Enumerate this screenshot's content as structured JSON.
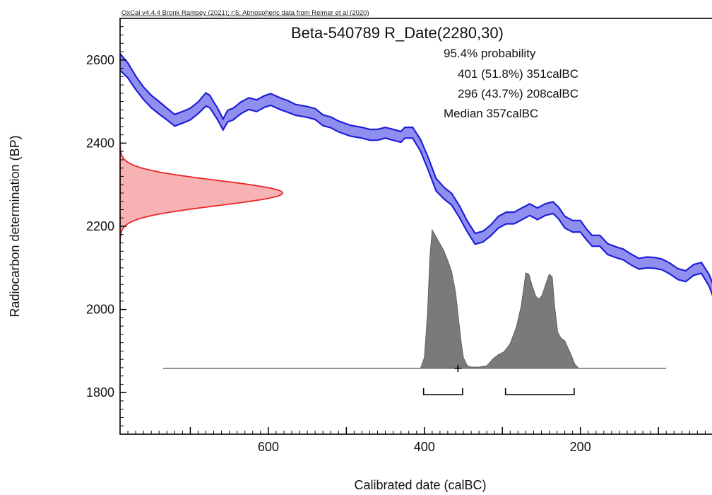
{
  "chart_data": {
    "type": "area",
    "header": "OxCal v4.4.4 Bronk Ramsey (2021); r:5; Atmospheric data from Reimer et al (2020)",
    "title": "Beta-540789 R_Date(2280,30)",
    "probability_label": "95.4% probability",
    "ranges": [
      {
        "text": "401 (51.8%) 351calBC",
        "from": 401,
        "to": 351,
        "percent": 51.8
      },
      {
        "text": "296 (43.7%) 208calBC",
        "from": 296,
        "to": 208,
        "percent": 43.7
      }
    ],
    "median_text": "Median 357calBC",
    "median": 357,
    "xlabel": "Calibrated date (calBC)",
    "ylabel": "Radiocarbon determination (BP)",
    "xlim": [
      790,
      25
    ],
    "ylim": [
      1700,
      2700
    ],
    "x_ticks": [
      600,
      400,
      200
    ],
    "y_ticks": [
      1800,
      2000,
      2200,
      2400,
      2600
    ],
    "radiocarbon_date": {
      "mean": 2280,
      "sd": 30
    },
    "calibration_curve": {
      "name": "Atmospheric calibration curve",
      "color": "#1f1fd8",
      "fill": "#8f8ff0",
      "points": [
        [
          790,
          2595,
          20
        ],
        [
          780,
          2575,
          18
        ],
        [
          770,
          2545,
          16
        ],
        [
          760,
          2520,
          15
        ],
        [
          750,
          2500,
          15
        ],
        [
          740,
          2485,
          15
        ],
        [
          730,
          2470,
          14
        ],
        [
          720,
          2455,
          14
        ],
        [
          710,
          2462,
          14
        ],
        [
          700,
          2470,
          14
        ],
        [
          690,
          2485,
          14
        ],
        [
          680,
          2505,
          16
        ],
        [
          675,
          2500,
          15
        ],
        [
          670,
          2485,
          14
        ],
        [
          665,
          2470,
          14
        ],
        [
          658,
          2445,
          13
        ],
        [
          652,
          2465,
          14
        ],
        [
          645,
          2470,
          14
        ],
        [
          635,
          2485,
          14
        ],
        [
          625,
          2495,
          14
        ],
        [
          615,
          2490,
          14
        ],
        [
          605,
          2500,
          14
        ],
        [
          597,
          2505,
          14
        ],
        [
          585,
          2495,
          14
        ],
        [
          575,
          2488,
          14
        ],
        [
          565,
          2480,
          13
        ],
        [
          550,
          2475,
          13
        ],
        [
          540,
          2470,
          13
        ],
        [
          530,
          2455,
          13
        ],
        [
          520,
          2450,
          13
        ],
        [
          510,
          2440,
          13
        ],
        [
          495,
          2430,
          13
        ],
        [
          480,
          2425,
          13
        ],
        [
          470,
          2420,
          13
        ],
        [
          460,
          2420,
          13
        ],
        [
          450,
          2425,
          13
        ],
        [
          440,
          2420,
          13
        ],
        [
          430,
          2415,
          13
        ],
        [
          425,
          2425,
          13
        ],
        [
          415,
          2425,
          13
        ],
        [
          405,
          2395,
          14
        ],
        [
          395,
          2350,
          15
        ],
        [
          385,
          2300,
          15
        ],
        [
          375,
          2280,
          14
        ],
        [
          365,
          2265,
          14
        ],
        [
          355,
          2235,
          14
        ],
        [
          345,
          2200,
          13
        ],
        [
          335,
          2170,
          13
        ],
        [
          325,
          2175,
          13
        ],
        [
          315,
          2190,
          13
        ],
        [
          305,
          2210,
          14
        ],
        [
          295,
          2220,
          14
        ],
        [
          285,
          2220,
          14
        ],
        [
          275,
          2230,
          14
        ],
        [
          265,
          2240,
          14
        ],
        [
          255,
          2230,
          14
        ],
        [
          245,
          2240,
          14
        ],
        [
          235,
          2245,
          14
        ],
        [
          228,
          2232,
          14
        ],
        [
          220,
          2210,
          14
        ],
        [
          210,
          2200,
          14
        ],
        [
          200,
          2200,
          14
        ],
        [
          192,
          2180,
          13
        ],
        [
          185,
          2165,
          13
        ],
        [
          175,
          2165,
          13
        ],
        [
          165,
          2145,
          13
        ],
        [
          155,
          2138,
          13
        ],
        [
          145,
          2132,
          13
        ],
        [
          135,
          2120,
          13
        ],
        [
          125,
          2110,
          13
        ],
        [
          115,
          2113,
          13
        ],
        [
          105,
          2112,
          13
        ],
        [
          95,
          2108,
          13
        ],
        [
          85,
          2098,
          13
        ],
        [
          75,
          2085,
          13
        ],
        [
          65,
          2080,
          13
        ],
        [
          55,
          2095,
          13
        ],
        [
          45,
          2100,
          13
        ],
        [
          35,
          2070,
          14
        ],
        [
          25,
          2020,
          15
        ]
      ]
    },
    "posterior": {
      "name": "Calibrated probability distribution",
      "color": "#7a7a7a",
      "baseline_from": 735,
      "baseline_to": 90,
      "points": [
        [
          405,
          0
        ],
        [
          400,
          0.08
        ],
        [
          396,
          0.4
        ],
        [
          393,
          0.8
        ],
        [
          390,
          1.0
        ],
        [
          385,
          0.95
        ],
        [
          380,
          0.9
        ],
        [
          375,
          0.85
        ],
        [
          370,
          0.78
        ],
        [
          365,
          0.7
        ],
        [
          360,
          0.55
        ],
        [
          357,
          0.4
        ],
        [
          353,
          0.2
        ],
        [
          350,
          0.08
        ],
        [
          345,
          0.02
        ],
        [
          340,
          0.01
        ],
        [
          330,
          0.01
        ],
        [
          320,
          0.02
        ],
        [
          312,
          0.07
        ],
        [
          305,
          0.1
        ],
        [
          298,
          0.12
        ],
        [
          290,
          0.18
        ],
        [
          282,
          0.3
        ],
        [
          276,
          0.45
        ],
        [
          270,
          0.69
        ],
        [
          266,
          0.68
        ],
        [
          262,
          0.6
        ],
        [
          257,
          0.52
        ],
        [
          253,
          0.5
        ],
        [
          249,
          0.53
        ],
        [
          245,
          0.6
        ],
        [
          240,
          0.68
        ],
        [
          236,
          0.66
        ],
        [
          233,
          0.45
        ],
        [
          229,
          0.26
        ],
        [
          225,
          0.22
        ],
        [
          220,
          0.2
        ],
        [
          216,
          0.15
        ],
        [
          212,
          0.1
        ],
        [
          207,
          0.03
        ],
        [
          202,
          0
        ]
      ]
    },
    "likelihood": {
      "name": "Radiocarbon likelihood",
      "color": "#e8262b",
      "fill": "#f7b3b3"
    }
  }
}
